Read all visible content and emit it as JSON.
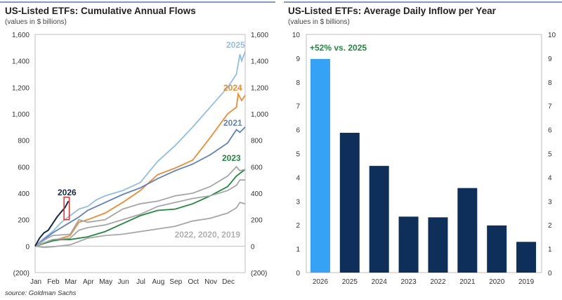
{
  "chart_data": [
    {
      "type": "line",
      "title": "US-Listed ETFs: Cumulative Annual Flows",
      "subtitle": "(values in $ billions)",
      "source": "source: Goldman Sachs",
      "x_unit": "months since Jan 1",
      "x_ticks": [
        "Jan",
        "Feb",
        "Mar",
        "Apr",
        "May",
        "Jun",
        "Jul",
        "Aug",
        "Sep",
        "Oct",
        "Nov",
        "Dec"
      ],
      "ylim": [
        -200,
        1600
      ],
      "y_ticks": [
        "(200)",
        "0",
        "200",
        "400",
        "600",
        "800",
        "1,000",
        "1,200",
        "1,400",
        "1,600"
      ],
      "y_tick_values": [
        -200,
        0,
        200,
        400,
        600,
        800,
        1000,
        1200,
        1400,
        1600
      ],
      "grid": false,
      "annotations": {
        "grey_label": "2022, 2020, 2019"
      },
      "highlight_box": {
        "x": [
          1.65,
          1.95
        ],
        "y": [
          200,
          370
        ],
        "color": "#e03030"
      },
      "series": [
        {
          "name": "2025",
          "color": "#8fbfe6",
          "x": [
            0,
            0.5,
            1,
            1.5,
            2,
            2.5,
            3,
            3.5,
            4,
            5,
            6,
            7,
            8,
            9,
            10,
            11,
            11.5,
            11.7,
            11.8,
            12
          ],
          "y": [
            0,
            60,
            110,
            180,
            230,
            280,
            300,
            350,
            380,
            420,
            480,
            640,
            760,
            900,
            1050,
            1200,
            1300,
            1450,
            1400,
            1470
          ]
        },
        {
          "name": "2024",
          "color": "#f28a30",
          "x": [
            0,
            1,
            2,
            2.5,
            3,
            4,
            5,
            6,
            7,
            8,
            9,
            10,
            11,
            11.5,
            11.6,
            11.8,
            12
          ],
          "y": [
            0,
            40,
            80,
            180,
            200,
            250,
            330,
            420,
            540,
            590,
            650,
            820,
            1000,
            1050,
            1150,
            1100,
            1140
          ]
        },
        {
          "name": "2021",
          "color": "#5f82c4",
          "x": [
            0,
            1,
            2,
            2.5,
            3,
            4,
            5,
            6,
            7,
            8,
            9,
            10,
            11,
            11.5,
            11.7,
            12
          ],
          "y": [
            0,
            100,
            180,
            220,
            270,
            330,
            390,
            440,
            510,
            570,
            620,
            690,
            780,
            880,
            860,
            900
          ]
        },
        {
          "name": "2023",
          "color": "#1f8a3c",
          "x": [
            0,
            1,
            1.5,
            2,
            3,
            4,
            5,
            6,
            7,
            8,
            9,
            10,
            11,
            11.5,
            12
          ],
          "y": [
            0,
            40,
            50,
            50,
            70,
            110,
            170,
            230,
            270,
            280,
            320,
            380,
            450,
            530,
            580
          ]
        },
        {
          "name": "2022",
          "color": "#a6a6a6",
          "x": [
            0,
            0.7,
            1,
            2,
            2.5,
            3,
            4,
            5,
            6,
            7,
            8,
            9,
            10,
            11,
            11.5,
            11.7,
            12
          ],
          "y": [
            0,
            60,
            80,
            90,
            200,
            180,
            200,
            280,
            320,
            340,
            380,
            400,
            450,
            530,
            600,
            570,
            580
          ]
        },
        {
          "name": "2020",
          "color": "#a6a6a6",
          "x": [
            0,
            1,
            2,
            2.5,
            3,
            4,
            5,
            6,
            7,
            8,
            9,
            10,
            11,
            11.5,
            11.7,
            12
          ],
          "y": [
            0,
            50,
            60,
            120,
            140,
            160,
            200,
            240,
            300,
            330,
            360,
            380,
            420,
            460,
            500,
            500
          ]
        },
        {
          "name": "2019",
          "color": "#a6a6a6",
          "x": [
            0,
            0.5,
            1,
            2,
            3,
            4,
            5,
            6,
            7,
            8,
            9,
            10,
            11,
            11.5,
            11.7,
            12
          ],
          "y": [
            0,
            -10,
            -5,
            10,
            60,
            80,
            90,
            110,
            130,
            150,
            190,
            210,
            250,
            290,
            330,
            320
          ]
        },
        {
          "name": "2026",
          "color": "#14284b",
          "x": [
            0,
            0.25,
            0.5,
            0.75,
            1,
            1.25,
            1.5,
            1.7,
            1.9
          ],
          "y": [
            0,
            60,
            100,
            120,
            170,
            220,
            260,
            290,
            340
          ]
        }
      ]
    },
    {
      "type": "bar",
      "title": "US-Listed ETFs: Average Daily Inflow per Year",
      "subtitle": "(values in $ billions)",
      "categories": [
        "2026",
        "2025",
        "2024",
        "2023",
        "2022",
        "2021",
        "2020",
        "2019"
      ],
      "values": [
        8.97,
        5.87,
        4.48,
        2.35,
        2.32,
        3.55,
        1.98,
        1.29
      ],
      "colors": [
        "#35a2f5",
        "#0d2f5a",
        "#0d2f5a",
        "#0d2f5a",
        "#0d2f5a",
        "#0d2f5a",
        "#0d2f5a",
        "#0d2f5a"
      ],
      "ylim": [
        0,
        10
      ],
      "y_ticks": [
        "0",
        "1",
        "2",
        "3",
        "4",
        "5",
        "6",
        "7",
        "8",
        "9",
        "10"
      ],
      "grid": false,
      "annotation": "+52% vs. 2025",
      "annotation_color": "#1f8a3c"
    }
  ]
}
